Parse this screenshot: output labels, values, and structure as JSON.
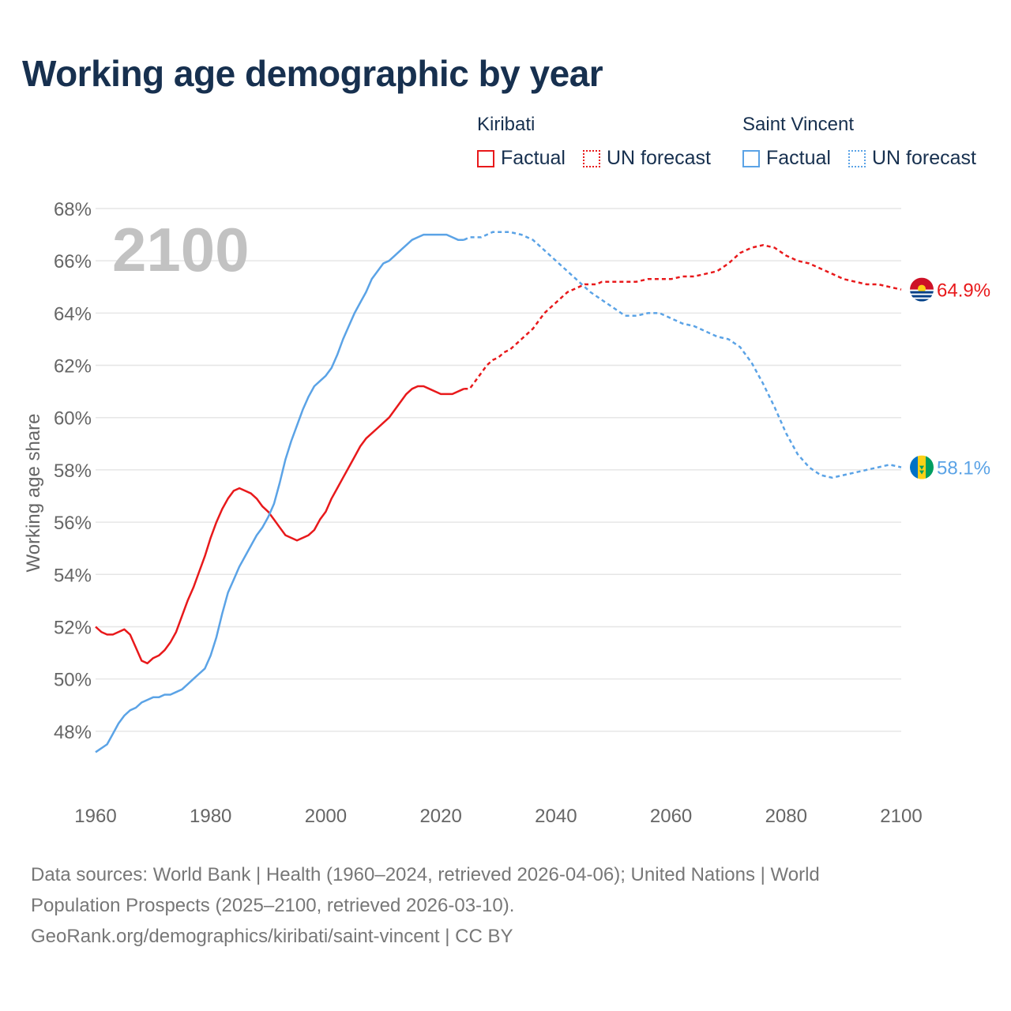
{
  "title": "Working age demographic by year",
  "legend": {
    "groups": [
      {
        "country": "Kiribati",
        "color": "#e8191b",
        "factual_label": "Factual",
        "forecast_label": "UN forecast"
      },
      {
        "country": "Saint Vincent",
        "color": "#5ba3e6",
        "factual_label": "Factual",
        "forecast_label": "UN forecast"
      }
    ]
  },
  "chart_data": {
    "type": "line",
    "title": "Working age demographic by year",
    "xlabel": "",
    "ylabel": "Working age share",
    "xlim": [
      1960,
      2100
    ],
    "ylim": [
      46,
      68
    ],
    "x_ticks": [
      1960,
      1980,
      2000,
      2020,
      2040,
      2060,
      2080,
      2100
    ],
    "y_ticks": [
      48,
      50,
      52,
      54,
      56,
      58,
      60,
      62,
      64,
      66,
      68
    ],
    "y_tick_suffix": "%",
    "year_watermark": "2100",
    "forecast_start": 2024,
    "series": [
      {
        "name": "Kiribati",
        "color": "#e8191b",
        "end_label": "64.9%",
        "flag": "kiribati-flag-icon",
        "x": [
          1960,
          1961,
          1962,
          1963,
          1964,
          1965,
          1966,
          1967,
          1968,
          1969,
          1970,
          1971,
          1972,
          1973,
          1974,
          1975,
          1976,
          1977,
          1978,
          1979,
          1980,
          1981,
          1982,
          1983,
          1984,
          1985,
          1986,
          1987,
          1988,
          1989,
          1990,
          1991,
          1992,
          1993,
          1995,
          1997,
          1998,
          1999,
          2000,
          2001,
          2002,
          2003,
          2004,
          2005,
          2006,
          2007,
          2008,
          2009,
          2010,
          2011,
          2012,
          2013,
          2014,
          2015,
          2016,
          2017,
          2018,
          2019,
          2020,
          2022,
          2024,
          2025,
          2026,
          2027,
          2028,
          2029,
          2030,
          2031,
          2032,
          2033,
          2034,
          2035,
          2036,
          2037,
          2038,
          2039,
          2040,
          2041,
          2042,
          2043,
          2044,
          2045,
          2046,
          2047,
          2048,
          2049,
          2050,
          2052,
          2054,
          2056,
          2058,
          2060,
          2062,
          2064,
          2066,
          2068,
          2070,
          2072,
          2073,
          2074,
          2076,
          2078,
          2080,
          2082,
          2084,
          2086,
          2088,
          2090,
          2092,
          2094,
          2096,
          2098,
          2100
        ],
        "values": [
          52.0,
          51.8,
          51.7,
          51.7,
          51.8,
          51.9,
          51.7,
          51.2,
          50.7,
          50.6,
          50.8,
          50.9,
          51.1,
          51.4,
          51.8,
          52.4,
          53.0,
          53.5,
          54.1,
          54.7,
          55.4,
          56.0,
          56.5,
          56.9,
          57.2,
          57.3,
          57.2,
          57.1,
          56.9,
          56.6,
          56.4,
          56.1,
          55.8,
          55.5,
          55.3,
          55.5,
          55.7,
          56.1,
          56.4,
          56.9,
          57.3,
          57.7,
          58.1,
          58.5,
          58.9,
          59.2,
          59.4,
          59.6,
          59.8,
          60.0,
          60.3,
          60.6,
          60.9,
          61.1,
          61.2,
          61.2,
          61.1,
          61.0,
          60.9,
          60.9,
          61.1,
          61.1,
          61.4,
          61.7,
          62.0,
          62.2,
          62.3,
          62.5,
          62.6,
          62.8,
          63.0,
          63.2,
          63.4,
          63.7,
          64.0,
          64.2,
          64.4,
          64.6,
          64.8,
          64.9,
          65.0,
          65.1,
          65.1,
          65.1,
          65.2,
          65.2,
          65.2,
          65.2,
          65.2,
          65.3,
          65.3,
          65.3,
          65.4,
          65.4,
          65.5,
          65.6,
          65.9,
          66.3,
          66.4,
          66.5,
          66.6,
          66.5,
          66.2,
          66.0,
          65.9,
          65.7,
          65.5,
          65.3,
          65.2,
          65.1,
          65.1,
          65.0,
          64.9
        ]
      },
      {
        "name": "Saint Vincent",
        "color": "#5ba3e6",
        "end_label": "58.1%",
        "flag": "saint-vincent-flag-icon",
        "x": [
          1960,
          1962,
          1963,
          1964,
          1965,
          1966,
          1967,
          1968,
          1969,
          1970,
          1971,
          1972,
          1973,
          1974,
          1975,
          1976,
          1977,
          1978,
          1979,
          1980,
          1981,
          1982,
          1983,
          1984,
          1985,
          1986,
          1987,
          1988,
          1989,
          1990,
          1991,
          1992,
          1993,
          1994,
          1995,
          1996,
          1997,
          1998,
          1999,
          2000,
          2001,
          2002,
          2003,
          2004,
          2005,
          2006,
          2007,
          2008,
          2009,
          2010,
          2011,
          2012,
          2013,
          2014,
          2015,
          2016,
          2017,
          2018,
          2019,
          2020,
          2021,
          2022,
          2023,
          2024,
          2025,
          2026,
          2027,
          2028,
          2029,
          2030,
          2032,
          2034,
          2036,
          2038,
          2040,
          2042,
          2044,
          2046,
          2048,
          2050,
          2052,
          2054,
          2056,
          2058,
          2060,
          2062,
          2064,
          2066,
          2068,
          2070,
          2072,
          2074,
          2076,
          2078,
          2080,
          2082,
          2084,
          2086,
          2088,
          2090,
          2092,
          2094,
          2096,
          2098,
          2100
        ],
        "values": [
          47.2,
          47.5,
          47.9,
          48.3,
          48.6,
          48.8,
          48.9,
          49.1,
          49.2,
          49.3,
          49.3,
          49.4,
          49.4,
          49.5,
          49.6,
          49.8,
          50.0,
          50.2,
          50.4,
          50.9,
          51.6,
          52.5,
          53.3,
          53.8,
          54.3,
          54.7,
          55.1,
          55.5,
          55.8,
          56.2,
          56.7,
          57.5,
          58.4,
          59.1,
          59.7,
          60.3,
          60.8,
          61.2,
          61.4,
          61.6,
          61.9,
          62.4,
          63.0,
          63.5,
          64.0,
          64.4,
          64.8,
          65.3,
          65.6,
          65.9,
          66.0,
          66.2,
          66.4,
          66.6,
          66.8,
          66.9,
          67.0,
          67.0,
          67.0,
          67.0,
          67.0,
          66.9,
          66.8,
          66.8,
          66.9,
          66.9,
          66.9,
          67.0,
          67.1,
          67.1,
          67.1,
          67.0,
          66.8,
          66.4,
          66.0,
          65.6,
          65.2,
          64.8,
          64.5,
          64.2,
          63.9,
          63.9,
          64.0,
          64.0,
          63.8,
          63.6,
          63.5,
          63.3,
          63.1,
          63.0,
          62.7,
          62.1,
          61.3,
          60.4,
          59.4,
          58.6,
          58.1,
          57.8,
          57.7,
          57.8,
          57.9,
          58.0,
          58.1,
          58.2,
          58.1
        ]
      }
    ]
  },
  "footer": {
    "line1": "Data sources: World Bank | Health (1960–2024, retrieved 2026-04-06); United Nations | World",
    "line2": "Population Prospects (2025–2100, retrieved 2026-03-10).",
    "line3": "GeoRank.org/demographics/kiribati/saint-vincent | CC BY"
  }
}
